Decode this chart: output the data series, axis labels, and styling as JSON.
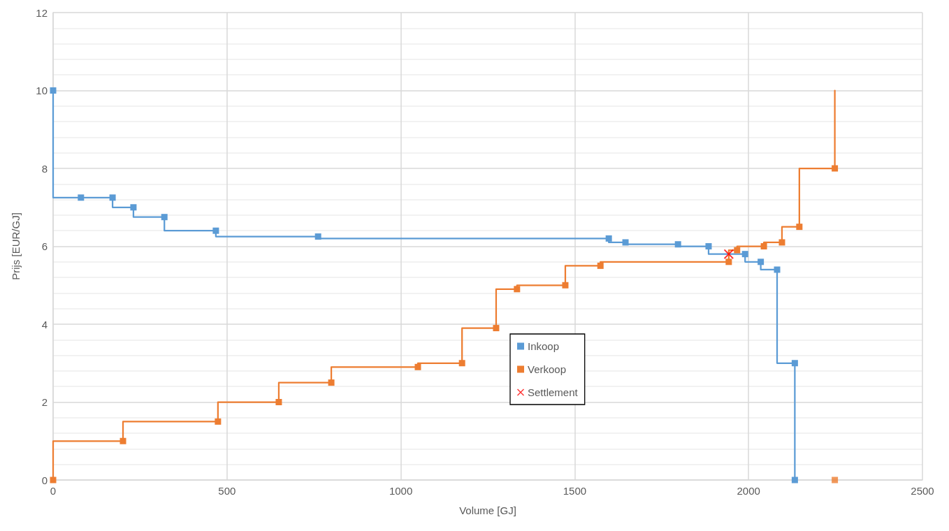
{
  "chart_data": {
    "type": "step",
    "xlabel": "Volume [GJ]",
    "ylabel": "Prijs [EUR/GJ]",
    "xlim": [
      0,
      2500
    ],
    "xticks": [
      0,
      500,
      1000,
      1500,
      2000,
      2500
    ],
    "ylim": [
      0,
      12
    ],
    "yticks": [
      0,
      2,
      4,
      6,
      8,
      10,
      12
    ],
    "grid": true,
    "legend": "center",
    "marker": "square",
    "line_style": "solid",
    "series": [
      {
        "name": "Inkoop",
        "color": "#5b9bd5",
        "x": [
          0,
          80,
          171,
          231,
          320,
          468,
          762,
          1598,
          1646,
          1797,
          1885,
          1990,
          2035,
          2082,
          2133,
          2133
        ],
        "values": [
          10,
          7.25,
          7.25,
          7.0,
          6.75,
          6.4,
          6.25,
          6.2,
          6.1,
          6.05,
          6.0,
          5.8,
          5.6,
          5.4,
          3.0,
          0
        ]
      },
      {
        "name": "Verkoop",
        "color": "#ed7d31",
        "x": [
          0,
          201,
          474,
          649,
          800,
          1049,
          1176,
          1274,
          1334,
          1473,
          1574,
          1943,
          1967,
          2044,
          2096,
          2146,
          2248
        ],
        "values": [
          0,
          1.0,
          1.5,
          2.0,
          2.5,
          2.9,
          3.0,
          3.9,
          4.9,
          5.0,
          5.5,
          5.6,
          5.9,
          6.0,
          6.1,
          6.5,
          8.0
        ]
      },
      {
        "type": "scatter",
        "color": "#ed7d31",
        "x": [
          2248
        ],
        "values": [
          0
        ]
      },
      {
        "color": "#ed7d31",
        "marker": "none",
        "x": [
          2248,
          2248
        ],
        "values": [
          8.0,
          10
        ]
      },
      {
        "name": "Settlement",
        "type": "scatter",
        "marker": "cross",
        "color": "#ff0000",
        "x": [
          1943
        ],
        "values": [
          5.8
        ]
      }
    ]
  }
}
